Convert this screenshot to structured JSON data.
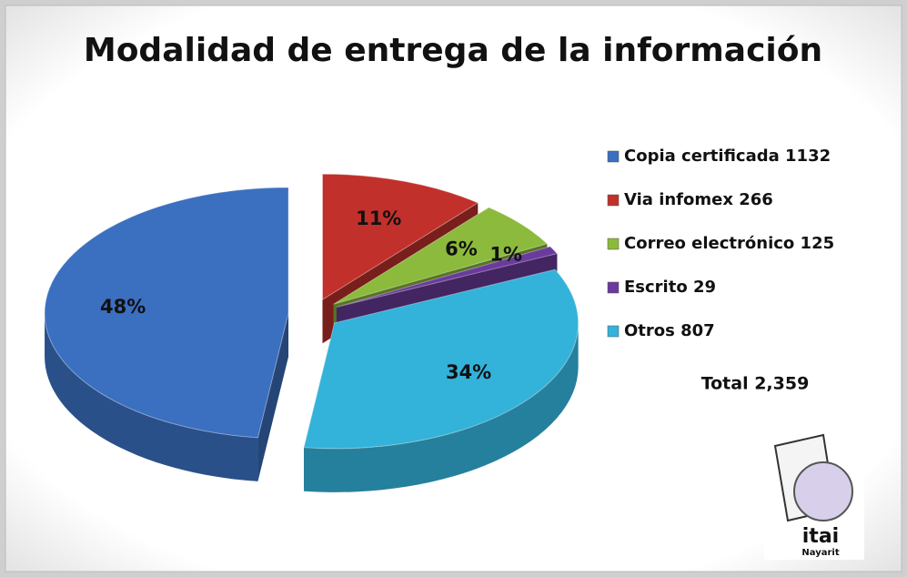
{
  "chart_data": {
    "type": "pie",
    "title": "Modalidad de entrega de la información",
    "categories": [
      "Copia certificada 1132",
      "Via infomex 266",
      "Correo electrónico 125",
      "Escrito 29",
      "Otros 807"
    ],
    "values": [
      48,
      11,
      6,
      1,
      34
    ],
    "value_labels": [
      "48%",
      "11%",
      "6%",
      "1%",
      "34%"
    ],
    "colors": [
      "#3b6fc0",
      "#c2302b",
      "#8cba3c",
      "#6a3b9c",
      "#33b2da"
    ],
    "legend": "right",
    "annotation": "Total 2,359"
  },
  "logo": {
    "text": "itai",
    "subtext": "Nayarit"
  }
}
